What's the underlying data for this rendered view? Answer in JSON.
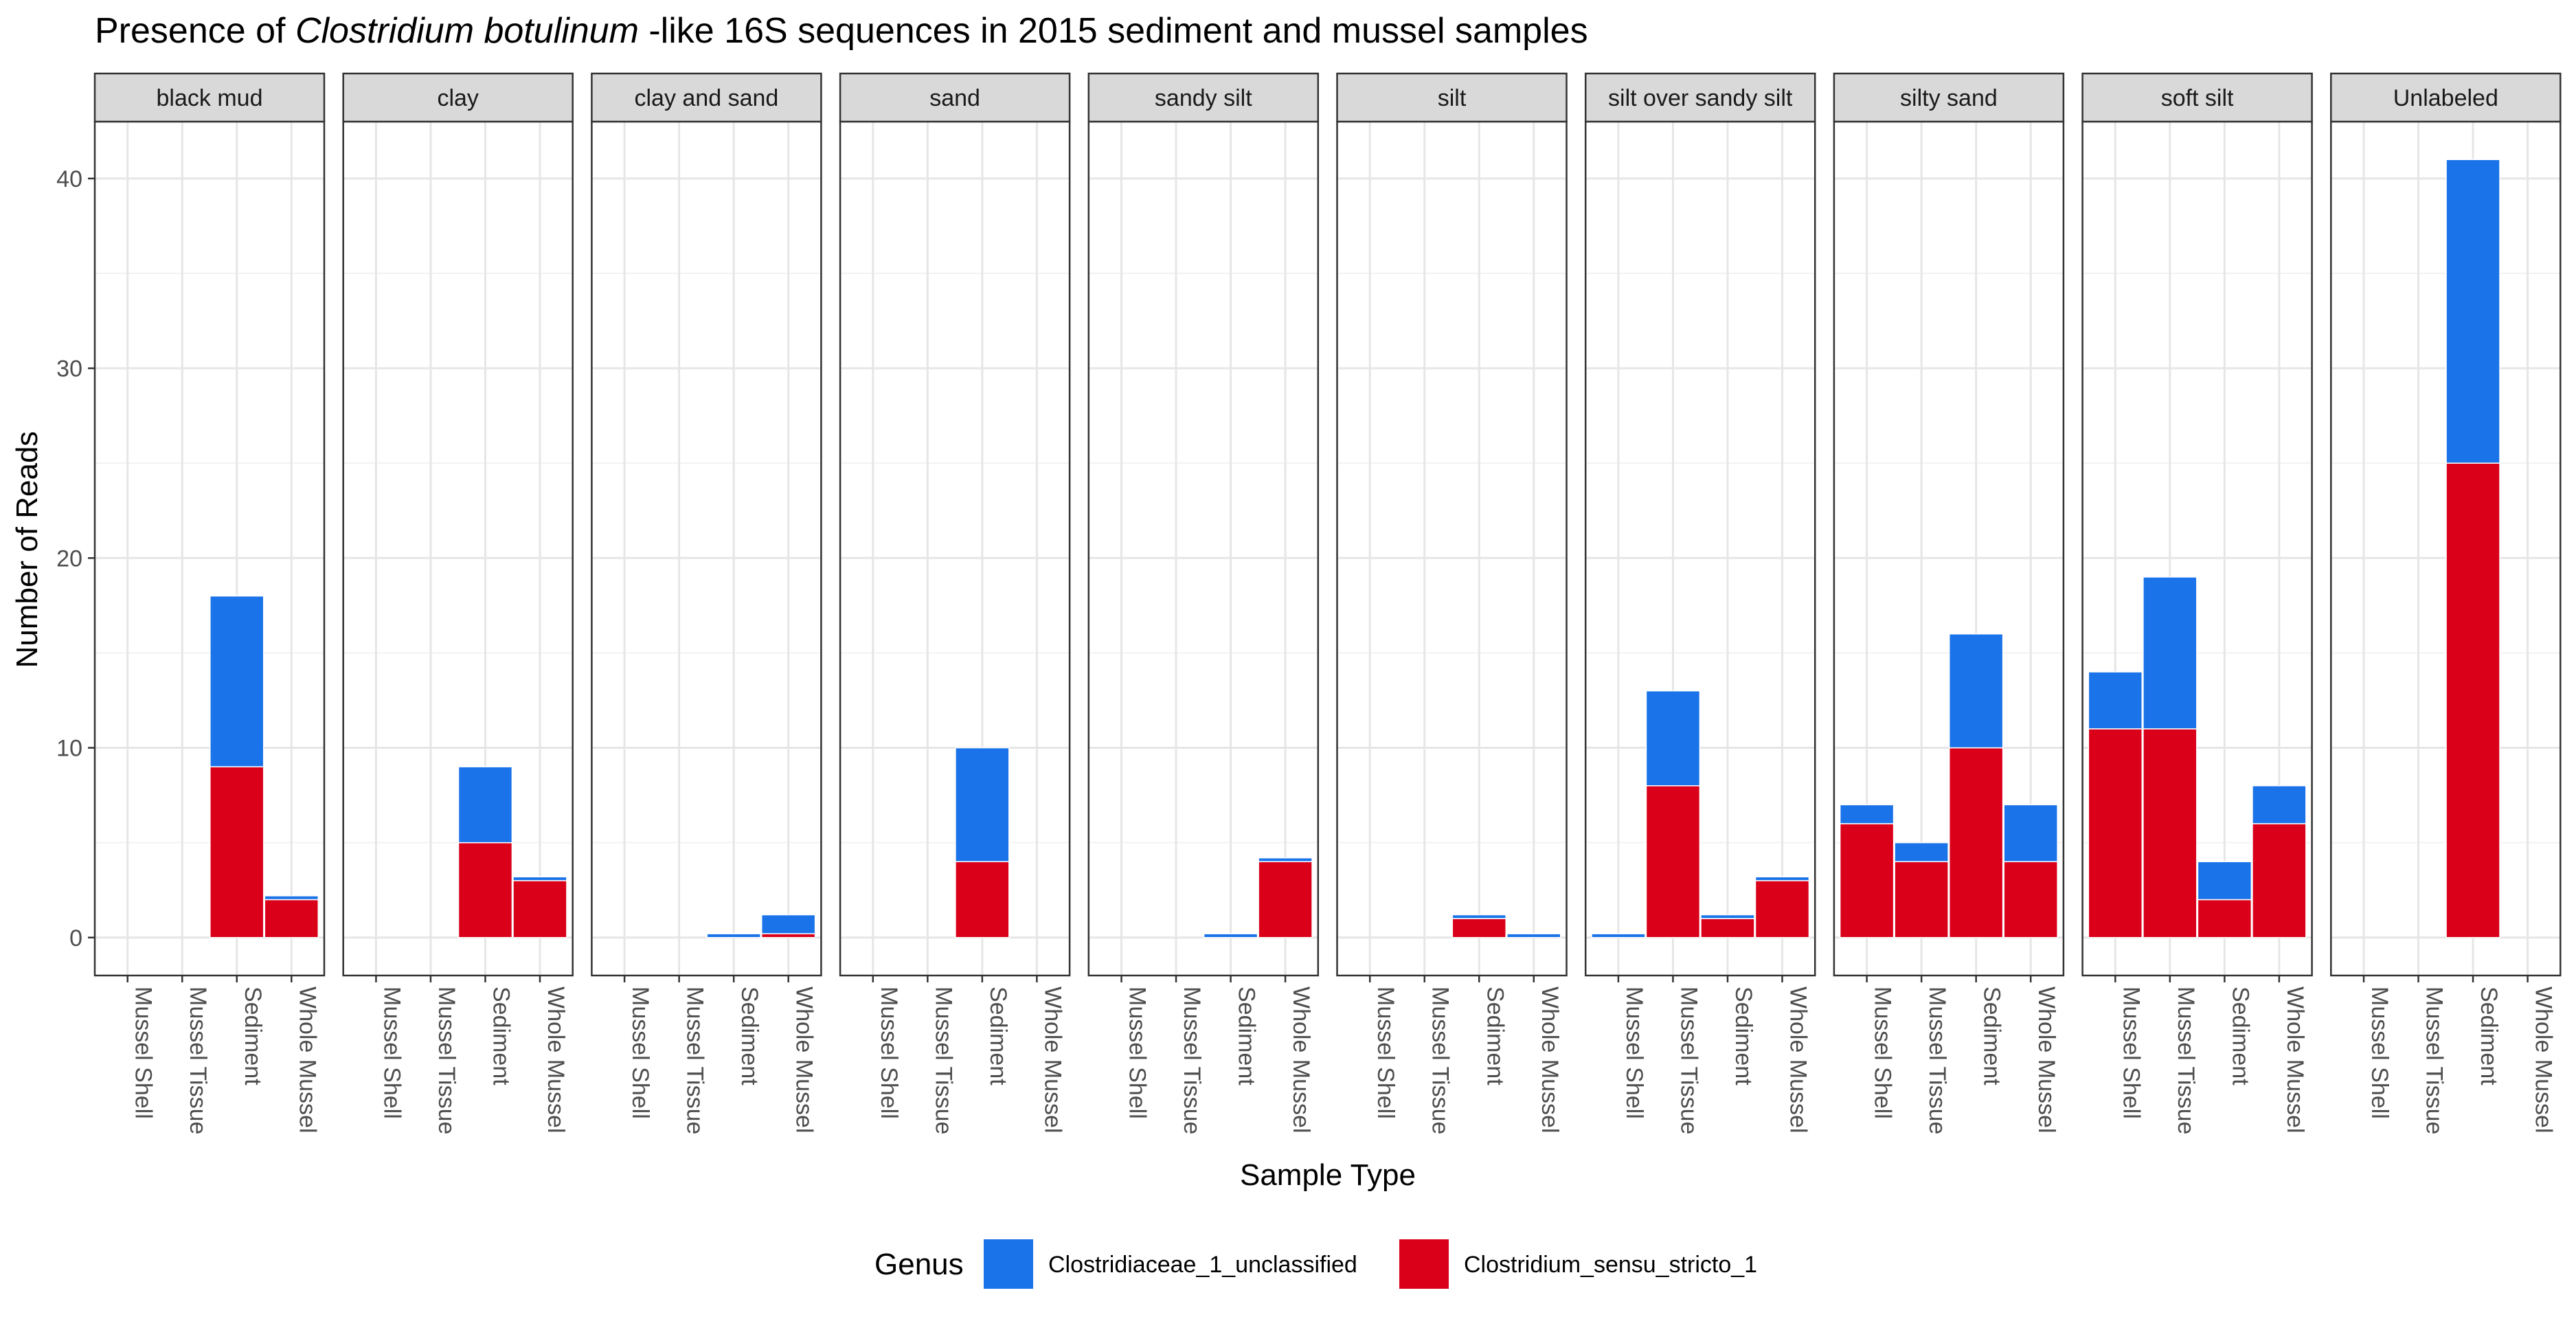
{
  "chart_data": {
    "type": "bar",
    "stacked": true,
    "faceted": true,
    "title_parts": [
      {
        "text": "Presence of ",
        "italic": false
      },
      {
        "text": "Clostridium botulinum",
        "italic": true
      },
      {
        "text": " -like 16S sequences in 2015 sediment and mussel samples",
        "italic": false
      }
    ],
    "xlabel": "Sample Type",
    "ylabel": "Number of Reads",
    "ylim": [
      -2,
      43
    ],
    "yticks": [
      0,
      10,
      20,
      30,
      40
    ],
    "tick_labels": [
      "0",
      "10",
      "20",
      "30",
      "40"
    ],
    "categories": [
      "Mussel Shell",
      "Mussel Tissue",
      "Sediment",
      "Whole Mussel"
    ],
    "grid": true,
    "legend": {
      "title": "Genus",
      "position": "bottom",
      "entries": [
        {
          "name": "Clostridiaceae_1_unclassified",
          "color": "#1a73e8"
        },
        {
          "name": "Clostridium_sensu_stricto_1",
          "color": "#da001a"
        }
      ]
    },
    "facets": [
      {
        "label": "black mud",
        "series": [
          {
            "name": "Clostridium_sensu_stricto_1",
            "values": [
              0,
              0,
              9,
              2
            ]
          },
          {
            "name": "Clostridiaceae_1_unclassified",
            "values": [
              0,
              0,
              9,
              0.2
            ]
          }
        ]
      },
      {
        "label": "clay",
        "series": [
          {
            "name": "Clostridium_sensu_stricto_1",
            "values": [
              0,
              0,
              5,
              3
            ]
          },
          {
            "name": "Clostridiaceae_1_unclassified",
            "values": [
              0,
              0,
              4,
              0.2
            ]
          }
        ]
      },
      {
        "label": "clay and sand",
        "series": [
          {
            "name": "Clostridium_sensu_stricto_1",
            "values": [
              0,
              0,
              0,
              0.2
            ]
          },
          {
            "name": "Clostridiaceae_1_unclassified",
            "values": [
              0,
              0,
              0.2,
              1
            ]
          }
        ]
      },
      {
        "label": "sand",
        "series": [
          {
            "name": "Clostridium_sensu_stricto_1",
            "values": [
              0,
              0,
              4,
              0
            ]
          },
          {
            "name": "Clostridiaceae_1_unclassified",
            "values": [
              0,
              0,
              6,
              0
            ]
          }
        ]
      },
      {
        "label": "sandy silt",
        "series": [
          {
            "name": "Clostridium_sensu_stricto_1",
            "values": [
              0,
              0,
              0,
              4
            ]
          },
          {
            "name": "Clostridiaceae_1_unclassified",
            "values": [
              0,
              0,
              0.2,
              0.2
            ]
          }
        ]
      },
      {
        "label": "silt",
        "series": [
          {
            "name": "Clostridium_sensu_stricto_1",
            "values": [
              0,
              0,
              1,
              0
            ]
          },
          {
            "name": "Clostridiaceae_1_unclassified",
            "values": [
              0,
              0,
              0.2,
              0.2
            ]
          }
        ]
      },
      {
        "label": "silt over sandy silt",
        "series": [
          {
            "name": "Clostridium_sensu_stricto_1",
            "values": [
              0,
              8,
              1,
              3
            ]
          },
          {
            "name": "Clostridiaceae_1_unclassified",
            "values": [
              0.2,
              5,
              0.2,
              0.2
            ]
          }
        ]
      },
      {
        "label": "silty sand",
        "series": [
          {
            "name": "Clostridium_sensu_stricto_1",
            "values": [
              6,
              4,
              10,
              4
            ]
          },
          {
            "name": "Clostridiaceae_1_unclassified",
            "values": [
              1,
              1,
              6,
              3
            ]
          }
        ]
      },
      {
        "label": "soft silt",
        "series": [
          {
            "name": "Clostridium_sensu_stricto_1",
            "values": [
              11,
              11,
              2,
              6
            ]
          },
          {
            "name": "Clostridiaceae_1_unclassified",
            "values": [
              3,
              8,
              2,
              2
            ]
          }
        ]
      },
      {
        "label": "Unlabeled",
        "series": [
          {
            "name": "Clostridium_sensu_stricto_1",
            "values": [
              0,
              0,
              25,
              0
            ]
          },
          {
            "name": "Clostridiaceae_1_unclassified",
            "values": [
              0,
              0,
              16,
              0
            ]
          }
        ]
      }
    ]
  }
}
